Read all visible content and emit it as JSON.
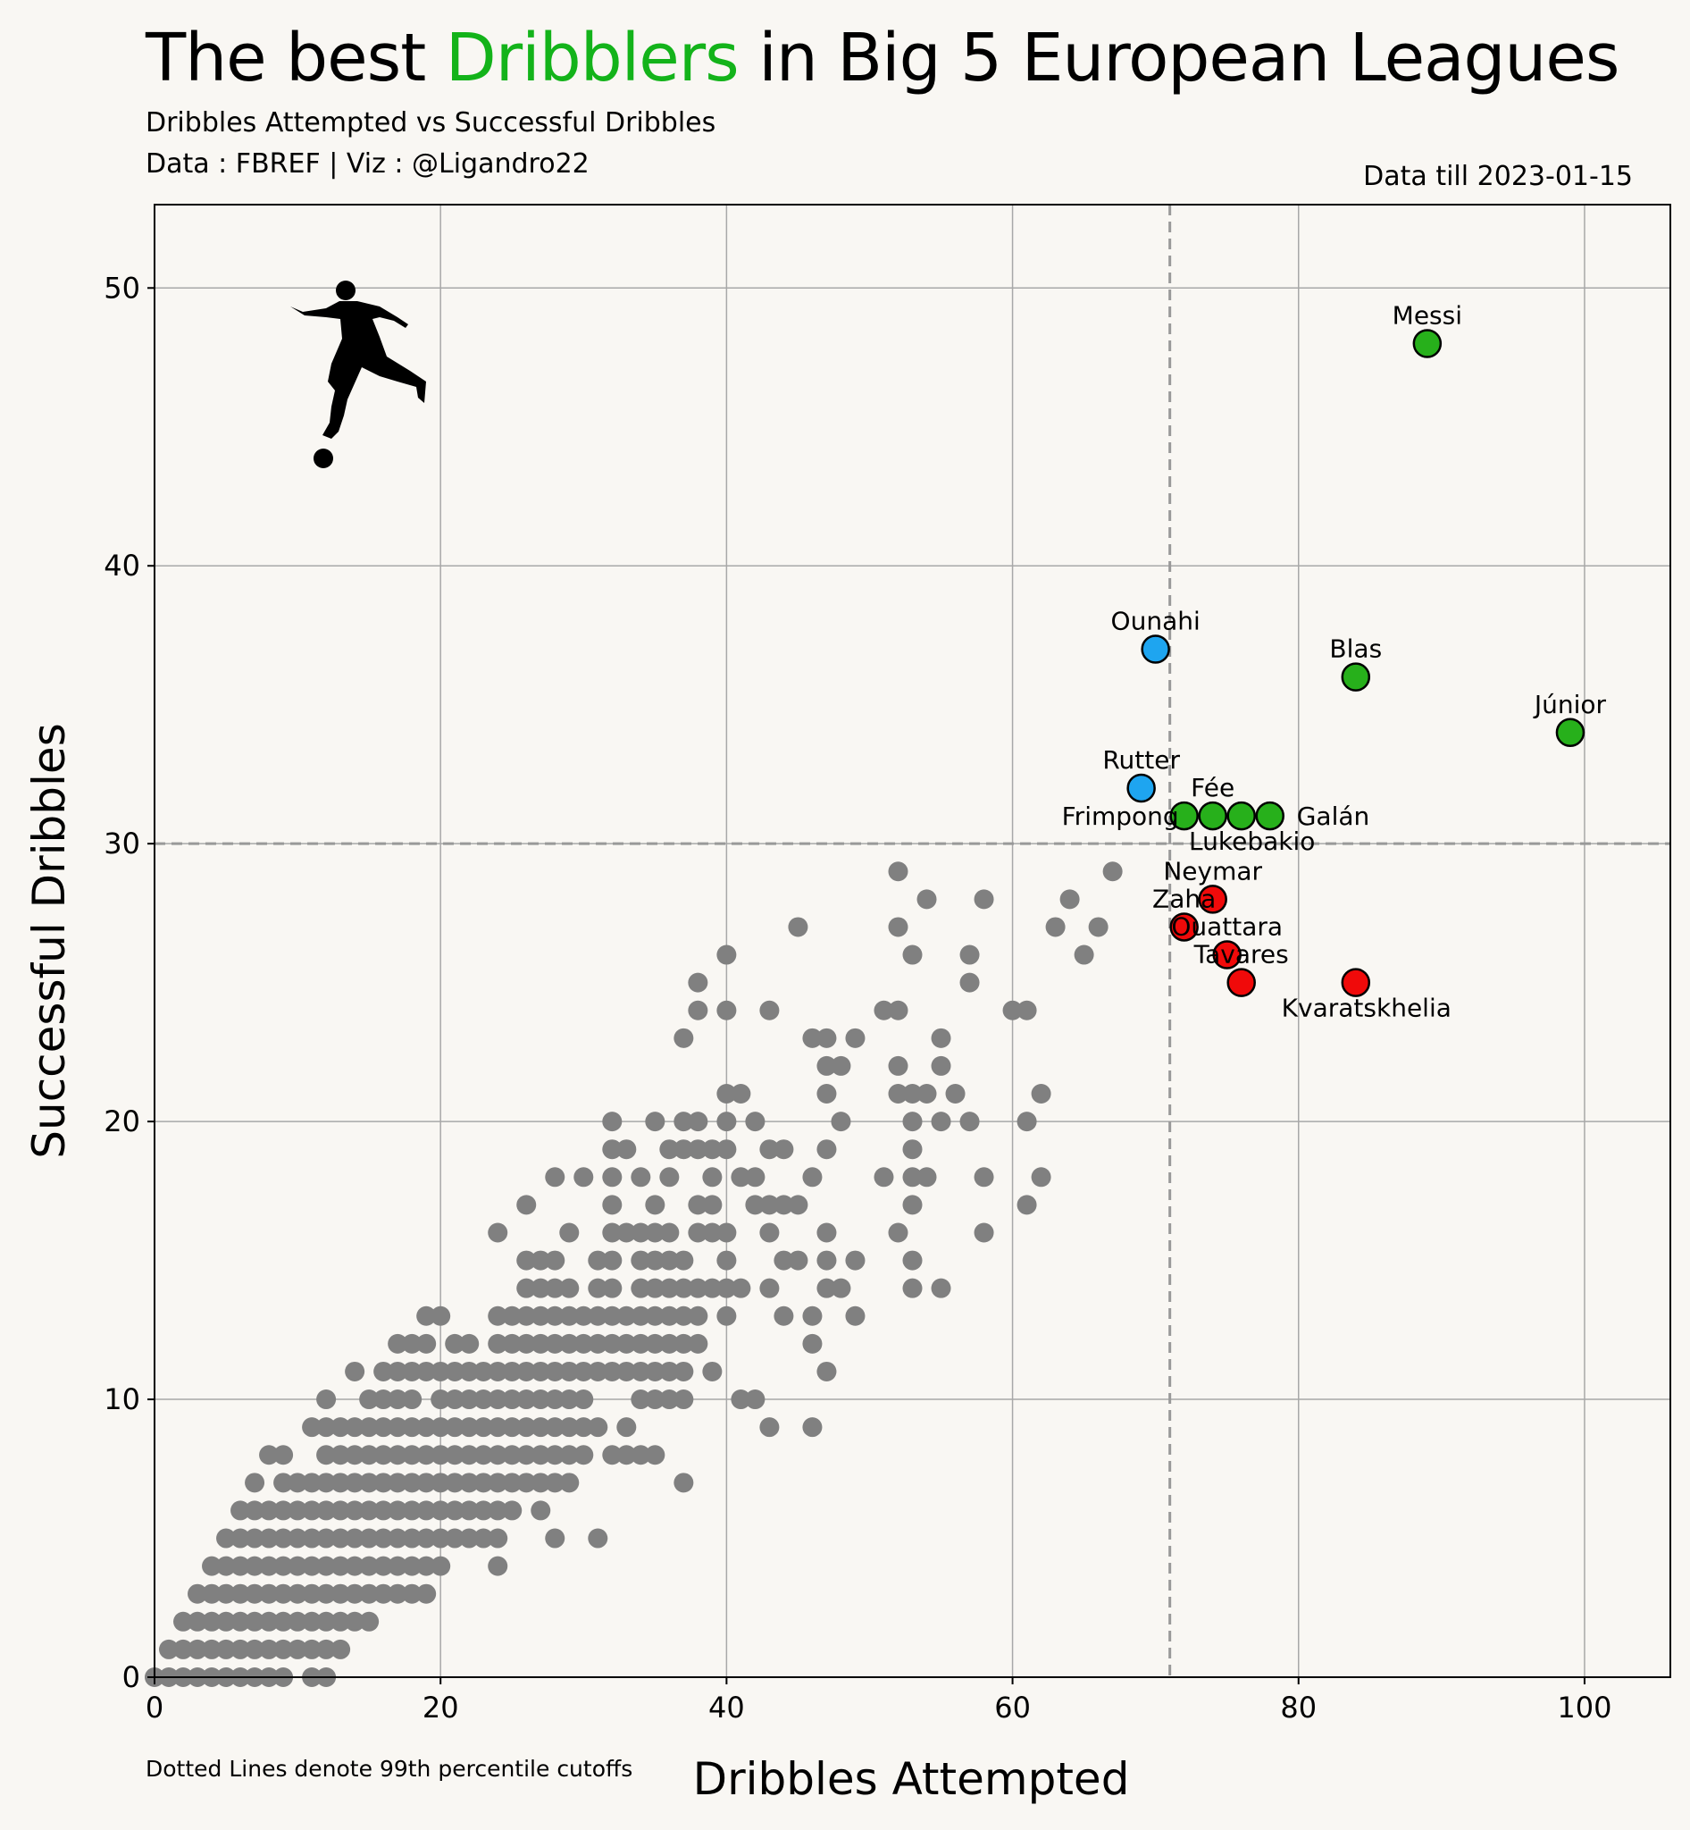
{
  "header": {
    "title_pre": "The best ",
    "title_highlight": "Dribblers",
    "title_post": " in Big 5 European Leagues",
    "subtitle": "Dribbles Attempted vs Successful Dribbles",
    "credits": "Data : FBREF | Viz : @Ligandro22",
    "data_till": "Data till 2023-01-15",
    "footnote": "Dotted Lines denote 99th percentile cutoffs"
  },
  "colors": {
    "background": "#f9f7f3",
    "highlight": "#13b31a",
    "other": "#808080",
    "top_both": "#27b01b",
    "top_success": "#1ea5f0",
    "top_attempts": "#f00a0a",
    "cutoff": "#999999"
  },
  "chart_data": {
    "type": "scatter",
    "xlabel": "Dribbles Attempted",
    "ylabel": "Successful Dribbles",
    "xlim": [
      0,
      106
    ],
    "ylim": [
      0,
      53
    ],
    "xticks": [
      0,
      20,
      40,
      60,
      80,
      100
    ],
    "yticks": [
      0,
      10,
      20,
      30,
      40,
      50
    ],
    "grid": true,
    "cutoffs": {
      "x": 71,
      "y": 30
    },
    "highlighted": [
      {
        "name": "Messi",
        "x": 89,
        "y": 48,
        "group": "top_both",
        "label_pos": "above"
      },
      {
        "name": "Júnior",
        "x": 99,
        "y": 34,
        "group": "top_both",
        "label_pos": "above"
      },
      {
        "name": "Blas",
        "x": 84,
        "y": 36,
        "group": "top_both",
        "label_pos": "above"
      },
      {
        "name": "Galán",
        "x": 78,
        "y": 31,
        "group": "top_both",
        "label_pos": "right"
      },
      {
        "name": "Fée",
        "x": 74,
        "y": 31,
        "group": "top_both",
        "label_pos": "above"
      },
      {
        "name": "Frimpong",
        "x": 72,
        "y": 31,
        "group": "top_both",
        "label_pos": "left"
      },
      {
        "name": "Lukebakio",
        "x": 76,
        "y": 31,
        "group": "top_both",
        "label_pos": "below"
      },
      {
        "name": "Ounahi",
        "x": 70,
        "y": 37,
        "group": "top_success",
        "label_pos": "above"
      },
      {
        "name": "Rutter",
        "x": 69,
        "y": 32,
        "group": "top_success",
        "label_pos": "above"
      },
      {
        "name": "Neymar",
        "x": 74,
        "y": 28,
        "group": "top_attempts",
        "label_pos": "above"
      },
      {
        "name": "Zaha",
        "x": 72,
        "y": 27,
        "group": "top_attempts",
        "label_pos": "above"
      },
      {
        "name": "Ouattara",
        "x": 75,
        "y": 26,
        "group": "top_attempts",
        "label_pos": "above"
      },
      {
        "name": "Tavares",
        "x": 76,
        "y": 25,
        "group": "top_attempts",
        "label_pos": "above"
      },
      {
        "name": "Kvaratskhelia",
        "x": 84,
        "y": 25,
        "group": "top_attempts",
        "label_pos": "below"
      }
    ],
    "others": [
      [
        0,
        0
      ],
      [
        1,
        0
      ],
      [
        2,
        0
      ],
      [
        3,
        0
      ],
      [
        4,
        0
      ],
      [
        5,
        0
      ],
      [
        6,
        0
      ],
      [
        7,
        0
      ],
      [
        8,
        0
      ],
      [
        9,
        0
      ],
      [
        11,
        0
      ],
      [
        12,
        0
      ],
      [
        1,
        1
      ],
      [
        2,
        1
      ],
      [
        3,
        1
      ],
      [
        4,
        1
      ],
      [
        5,
        1
      ],
      [
        6,
        1
      ],
      [
        7,
        1
      ],
      [
        8,
        1
      ],
      [
        9,
        1
      ],
      [
        10,
        1
      ],
      [
        11,
        1
      ],
      [
        12,
        1
      ],
      [
        13,
        1
      ],
      [
        2,
        2
      ],
      [
        3,
        2
      ],
      [
        4,
        2
      ],
      [
        5,
        2
      ],
      [
        6,
        2
      ],
      [
        7,
        2
      ],
      [
        8,
        2
      ],
      [
        9,
        2
      ],
      [
        10,
        2
      ],
      [
        11,
        2
      ],
      [
        12,
        2
      ],
      [
        13,
        2
      ],
      [
        14,
        2
      ],
      [
        15,
        2
      ],
      [
        3,
        3
      ],
      [
        4,
        3
      ],
      [
        5,
        3
      ],
      [
        6,
        3
      ],
      [
        7,
        3
      ],
      [
        8,
        3
      ],
      [
        9,
        3
      ],
      [
        10,
        3
      ],
      [
        11,
        3
      ],
      [
        12,
        3
      ],
      [
        13,
        3
      ],
      [
        14,
        3
      ],
      [
        15,
        3
      ],
      [
        16,
        3
      ],
      [
        17,
        3
      ],
      [
        18,
        3
      ],
      [
        19,
        3
      ],
      [
        4,
        4
      ],
      [
        5,
        4
      ],
      [
        6,
        4
      ],
      [
        7,
        4
      ],
      [
        8,
        4
      ],
      [
        9,
        4
      ],
      [
        10,
        4
      ],
      [
        11,
        4
      ],
      [
        12,
        4
      ],
      [
        13,
        4
      ],
      [
        14,
        4
      ],
      [
        15,
        4
      ],
      [
        16,
        4
      ],
      [
        17,
        4
      ],
      [
        18,
        4
      ],
      [
        19,
        4
      ],
      [
        20,
        4
      ],
      [
        24,
        4
      ],
      [
        5,
        5
      ],
      [
        6,
        5
      ],
      [
        7,
        5
      ],
      [
        8,
        5
      ],
      [
        9,
        5
      ],
      [
        10,
        5
      ],
      [
        11,
        5
      ],
      [
        12,
        5
      ],
      [
        13,
        5
      ],
      [
        14,
        5
      ],
      [
        15,
        5
      ],
      [
        16,
        5
      ],
      [
        17,
        5
      ],
      [
        18,
        5
      ],
      [
        19,
        5
      ],
      [
        20,
        5
      ],
      [
        21,
        5
      ],
      [
        22,
        5
      ],
      [
        23,
        5
      ],
      [
        24,
        5
      ],
      [
        28,
        5
      ],
      [
        31,
        5
      ],
      [
        6,
        6
      ],
      [
        7,
        6
      ],
      [
        8,
        6
      ],
      [
        9,
        6
      ],
      [
        10,
        6
      ],
      [
        11,
        6
      ],
      [
        12,
        6
      ],
      [
        13,
        6
      ],
      [
        14,
        6
      ],
      [
        15,
        6
      ],
      [
        16,
        6
      ],
      [
        17,
        6
      ],
      [
        18,
        6
      ],
      [
        19,
        6
      ],
      [
        20,
        6
      ],
      [
        21,
        6
      ],
      [
        22,
        6
      ],
      [
        23,
        6
      ],
      [
        24,
        6
      ],
      [
        25,
        6
      ],
      [
        27,
        6
      ],
      [
        7,
        7
      ],
      [
        9,
        7
      ],
      [
        10,
        7
      ],
      [
        11,
        7
      ],
      [
        12,
        7
      ],
      [
        13,
        7
      ],
      [
        14,
        7
      ],
      [
        15,
        7
      ],
      [
        16,
        7
      ],
      [
        17,
        7
      ],
      [
        18,
        7
      ],
      [
        19,
        7
      ],
      [
        20,
        7
      ],
      [
        21,
        7
      ],
      [
        22,
        7
      ],
      [
        23,
        7
      ],
      [
        24,
        7
      ],
      [
        25,
        7
      ],
      [
        26,
        7
      ],
      [
        27,
        7
      ],
      [
        28,
        7
      ],
      [
        29,
        7
      ],
      [
        37,
        7
      ],
      [
        8,
        8
      ],
      [
        9,
        8
      ],
      [
        12,
        8
      ],
      [
        13,
        8
      ],
      [
        14,
        8
      ],
      [
        15,
        8
      ],
      [
        16,
        8
      ],
      [
        17,
        8
      ],
      [
        18,
        8
      ],
      [
        19,
        8
      ],
      [
        20,
        8
      ],
      [
        21,
        8
      ],
      [
        22,
        8
      ],
      [
        23,
        8
      ],
      [
        24,
        8
      ],
      [
        25,
        8
      ],
      [
        26,
        8
      ],
      [
        27,
        8
      ],
      [
        28,
        8
      ],
      [
        29,
        8
      ],
      [
        30,
        8
      ],
      [
        32,
        8
      ],
      [
        33,
        8
      ],
      [
        34,
        8
      ],
      [
        35,
        8
      ],
      [
        11,
        9
      ],
      [
        12,
        9
      ],
      [
        13,
        9
      ],
      [
        14,
        9
      ],
      [
        15,
        9
      ],
      [
        16,
        9
      ],
      [
        17,
        9
      ],
      [
        18,
        9
      ],
      [
        19,
        9
      ],
      [
        20,
        9
      ],
      [
        21,
        9
      ],
      [
        22,
        9
      ],
      [
        23,
        9
      ],
      [
        24,
        9
      ],
      [
        25,
        9
      ],
      [
        26,
        9
      ],
      [
        27,
        9
      ],
      [
        28,
        9
      ],
      [
        29,
        9
      ],
      [
        30,
        9
      ],
      [
        31,
        9
      ],
      [
        33,
        9
      ],
      [
        43,
        9
      ],
      [
        46,
        9
      ],
      [
        12,
        10
      ],
      [
        15,
        10
      ],
      [
        16,
        10
      ],
      [
        17,
        10
      ],
      [
        18,
        10
      ],
      [
        20,
        10
      ],
      [
        21,
        10
      ],
      [
        22,
        10
      ],
      [
        23,
        10
      ],
      [
        24,
        10
      ],
      [
        25,
        10
      ],
      [
        26,
        10
      ],
      [
        27,
        10
      ],
      [
        28,
        10
      ],
      [
        29,
        10
      ],
      [
        30,
        10
      ],
      [
        34,
        10
      ],
      [
        35,
        10
      ],
      [
        36,
        10
      ],
      [
        37,
        10
      ],
      [
        41,
        10
      ],
      [
        42,
        10
      ],
      [
        14,
        11
      ],
      [
        16,
        11
      ],
      [
        17,
        11
      ],
      [
        18,
        11
      ],
      [
        19,
        11
      ],
      [
        20,
        11
      ],
      [
        21,
        11
      ],
      [
        22,
        11
      ],
      [
        23,
        11
      ],
      [
        24,
        11
      ],
      [
        25,
        11
      ],
      [
        26,
        11
      ],
      [
        27,
        11
      ],
      [
        28,
        11
      ],
      [
        29,
        11
      ],
      [
        30,
        11
      ],
      [
        31,
        11
      ],
      [
        32,
        11
      ],
      [
        33,
        11
      ],
      [
        34,
        11
      ],
      [
        35,
        11
      ],
      [
        36,
        11
      ],
      [
        37,
        11
      ],
      [
        39,
        11
      ],
      [
        47,
        11
      ],
      [
        17,
        12
      ],
      [
        18,
        12
      ],
      [
        19,
        12
      ],
      [
        21,
        12
      ],
      [
        22,
        12
      ],
      [
        24,
        12
      ],
      [
        25,
        12
      ],
      [
        26,
        12
      ],
      [
        27,
        12
      ],
      [
        28,
        12
      ],
      [
        29,
        12
      ],
      [
        30,
        12
      ],
      [
        31,
        12
      ],
      [
        32,
        12
      ],
      [
        33,
        12
      ],
      [
        34,
        12
      ],
      [
        35,
        12
      ],
      [
        36,
        12
      ],
      [
        37,
        12
      ],
      [
        38,
        12
      ],
      [
        46,
        12
      ],
      [
        19,
        13
      ],
      [
        20,
        13
      ],
      [
        24,
        13
      ],
      [
        25,
        13
      ],
      [
        26,
        13
      ],
      [
        27,
        13
      ],
      [
        28,
        13
      ],
      [
        29,
        13
      ],
      [
        30,
        13
      ],
      [
        31,
        13
      ],
      [
        32,
        13
      ],
      [
        33,
        13
      ],
      [
        34,
        13
      ],
      [
        35,
        13
      ],
      [
        36,
        13
      ],
      [
        37,
        13
      ],
      [
        38,
        13
      ],
      [
        40,
        13
      ],
      [
        44,
        13
      ],
      [
        46,
        13
      ],
      [
        49,
        13
      ],
      [
        26,
        14
      ],
      [
        27,
        14
      ],
      [
        28,
        14
      ],
      [
        29,
        14
      ],
      [
        31,
        14
      ],
      [
        32,
        14
      ],
      [
        34,
        14
      ],
      [
        35,
        14
      ],
      [
        36,
        14
      ],
      [
        37,
        14
      ],
      [
        38,
        14
      ],
      [
        39,
        14
      ],
      [
        40,
        14
      ],
      [
        41,
        14
      ],
      [
        43,
        14
      ],
      [
        47,
        14
      ],
      [
        48,
        14
      ],
      [
        53,
        14
      ],
      [
        55,
        14
      ],
      [
        26,
        15
      ],
      [
        27,
        15
      ],
      [
        28,
        15
      ],
      [
        31,
        15
      ],
      [
        32,
        15
      ],
      [
        34,
        15
      ],
      [
        35,
        15
      ],
      [
        36,
        15
      ],
      [
        37,
        15
      ],
      [
        40,
        15
      ],
      [
        44,
        15
      ],
      [
        45,
        15
      ],
      [
        47,
        15
      ],
      [
        49,
        15
      ],
      [
        53,
        15
      ],
      [
        24,
        16
      ],
      [
        29,
        16
      ],
      [
        32,
        16
      ],
      [
        33,
        16
      ],
      [
        34,
        16
      ],
      [
        35,
        16
      ],
      [
        36,
        16
      ],
      [
        38,
        16
      ],
      [
        39,
        16
      ],
      [
        40,
        16
      ],
      [
        43,
        16
      ],
      [
        47,
        16
      ],
      [
        52,
        16
      ],
      [
        58,
        16
      ],
      [
        26,
        17
      ],
      [
        32,
        17
      ],
      [
        35,
        17
      ],
      [
        38,
        17
      ],
      [
        39,
        17
      ],
      [
        42,
        17
      ],
      [
        43,
        17
      ],
      [
        44,
        17
      ],
      [
        45,
        17
      ],
      [
        53,
        17
      ],
      [
        61,
        17
      ],
      [
        28,
        18
      ],
      [
        30,
        18
      ],
      [
        32,
        18
      ],
      [
        34,
        18
      ],
      [
        36,
        18
      ],
      [
        39,
        18
      ],
      [
        41,
        18
      ],
      [
        42,
        18
      ],
      [
        46,
        18
      ],
      [
        51,
        18
      ],
      [
        53,
        18
      ],
      [
        54,
        18
      ],
      [
        58,
        18
      ],
      [
        62,
        18
      ],
      [
        32,
        19
      ],
      [
        33,
        19
      ],
      [
        36,
        19
      ],
      [
        37,
        19
      ],
      [
        38,
        19
      ],
      [
        39,
        19
      ],
      [
        40,
        19
      ],
      [
        43,
        19
      ],
      [
        44,
        19
      ],
      [
        47,
        19
      ],
      [
        53,
        19
      ],
      [
        32,
        20
      ],
      [
        35,
        20
      ],
      [
        37,
        20
      ],
      [
        38,
        20
      ],
      [
        40,
        20
      ],
      [
        42,
        20
      ],
      [
        48,
        20
      ],
      [
        53,
        20
      ],
      [
        55,
        20
      ],
      [
        57,
        20
      ],
      [
        61,
        20
      ],
      [
        40,
        21
      ],
      [
        41,
        21
      ],
      [
        47,
        21
      ],
      [
        52,
        21
      ],
      [
        53,
        21
      ],
      [
        54,
        21
      ],
      [
        56,
        21
      ],
      [
        62,
        21
      ],
      [
        47,
        22
      ],
      [
        48,
        22
      ],
      [
        52,
        22
      ],
      [
        55,
        22
      ],
      [
        37,
        23
      ],
      [
        46,
        23
      ],
      [
        47,
        23
      ],
      [
        49,
        23
      ],
      [
        55,
        23
      ],
      [
        38,
        24
      ],
      [
        40,
        24
      ],
      [
        43,
        24
      ],
      [
        51,
        24
      ],
      [
        52,
        24
      ],
      [
        60,
        24
      ],
      [
        61,
        24
      ],
      [
        38,
        25
      ],
      [
        57,
        25
      ],
      [
        40,
        26
      ],
      [
        53,
        26
      ],
      [
        57,
        26
      ],
      [
        65,
        26
      ],
      [
        45,
        27
      ],
      [
        52,
        27
      ],
      [
        63,
        27
      ],
      [
        66,
        27
      ],
      [
        54,
        28
      ],
      [
        58,
        28
      ],
      [
        64,
        28
      ],
      [
        52,
        29
      ],
      [
        67,
        29
      ]
    ]
  }
}
